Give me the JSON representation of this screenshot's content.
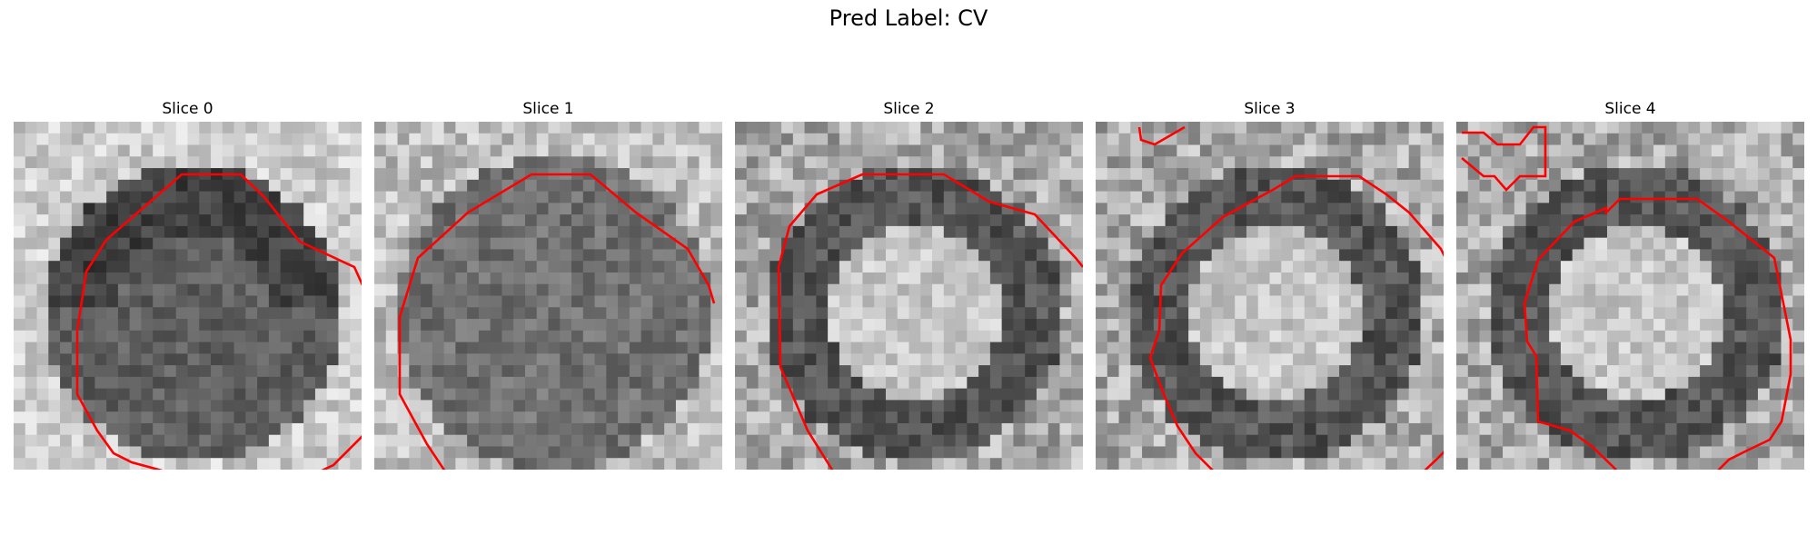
{
  "figure": {
    "title": "Pred Label: CV"
  },
  "panels": [
    {
      "title": "Slice 0",
      "pattern": "dark-ring"
    },
    {
      "title": "Slice 1",
      "pattern": "dark-uniform"
    },
    {
      "title": "Slice 2",
      "pattern": "bright-center"
    },
    {
      "title": "Slice 3",
      "pattern": "bright-center"
    },
    {
      "title": "Slice 4",
      "pattern": "bright-center"
    }
  ],
  "colors": {
    "contour": "#ff0000"
  }
}
